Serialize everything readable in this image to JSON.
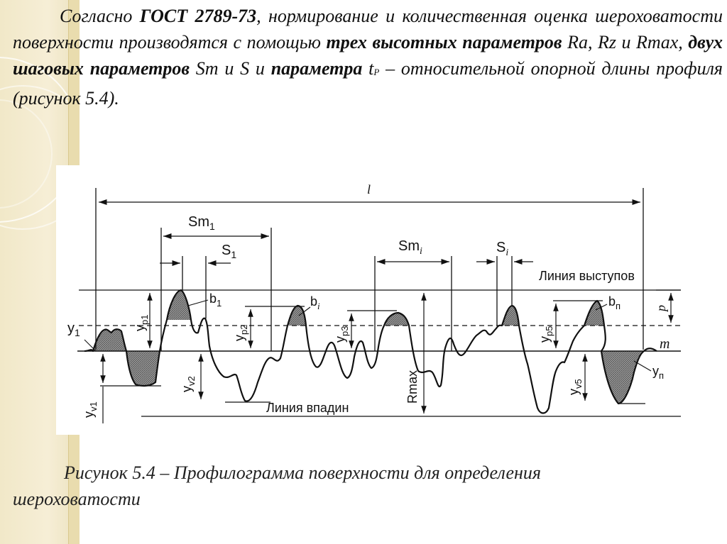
{
  "paragraph": {
    "p1": "Согласно ",
    "p2": "ГОСТ 2789-73",
    "p3": ", нормирование и количественная оценка шероховатости поверхности производятся с помощью ",
    "p4": "трех высотных параметров",
    "p5": " Ra, Rz и Rmax, ",
    "p6": "двух шаговых параметров",
    "p7": " Sm   и S и ",
    "p8": "параметра",
    "p9": " t",
    "p10": "P",
    "p11": "  – относительной опорной длины профиля  (рисунок 5.4)."
  },
  "figure": {
    "l": "l",
    "sm1": "Sm",
    "sm1_sub": "1",
    "s1": "S",
    "s1_sub": "1",
    "smi": "Sm",
    "smi_sub": "i",
    "si": "S",
    "si_sub": "i",
    "peak_line": "Линия выступов",
    "valley_line": "Линия впадин",
    "b1": "b",
    "b1_sub": "1",
    "bi": "b",
    "bi_sub": "i",
    "bn": "b",
    "bn_sub": "п",
    "y1": "y",
    "y1_sub": "1",
    "yp1": "y",
    "yp1_sub": "p1",
    "yv1": "y",
    "yv1_sub": "v1",
    "yp2": "y",
    "yp2_sub": "p2",
    "yv2": "y",
    "yv2_sub": "v2",
    "yp3": "y",
    "yp3_sub": "p3",
    "rmax": "Rmax",
    "yp5": "y",
    "yp5_sub": "p5",
    "yv5": "y",
    "yv5_sub": "v5",
    "yn": "y",
    "yn_sub": "п",
    "p": "p",
    "m": "m"
  },
  "caption": {
    "line1": "Рисунок 5.4 – Профилограмма поверхности для определения",
    "line2": "шероховатости"
  }
}
